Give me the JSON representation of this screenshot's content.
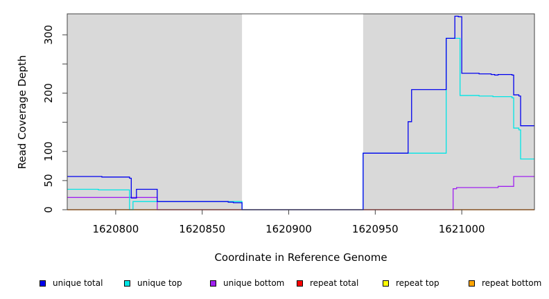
{
  "chart_data": {
    "type": "line",
    "xlabel": "Coordinate in Reference Genome",
    "ylabel": "Read Coverage Depth",
    "xlim": [
      1620772,
      1621042
    ],
    "ylim": [
      0,
      336
    ],
    "x_ticks": [
      1620800,
      1620850,
      1620900,
      1620950,
      1621000
    ],
    "x_tick_labels": [
      "1620800",
      "1620850",
      "1620900",
      "1620950",
      "1621000"
    ],
    "y_ticks": [
      0,
      50,
      100,
      150,
      200,
      250,
      300
    ],
    "y_tick_labels": [
      "0",
      "50",
      "100",
      "",
      "200",
      "",
      "300"
    ],
    "shaded_regions": [
      [
        1620772,
        1620873
      ],
      [
        1620943,
        1621042
      ]
    ],
    "background_color": "#d9d9d9",
    "series": [
      {
        "name": "unique total",
        "color": "#0000ee",
        "points": [
          [
            1620772,
            57
          ],
          [
            1620792,
            57
          ],
          [
            1620792,
            56
          ],
          [
            1620808,
            56
          ],
          [
            1620808,
            54
          ],
          [
            1620809,
            54
          ],
          [
            1620809,
            20
          ],
          [
            1620812,
            20
          ],
          [
            1620812,
            35
          ],
          [
            1620824,
            35
          ],
          [
            1620824,
            14
          ],
          [
            1620865,
            14
          ],
          [
            1620865,
            13
          ],
          [
            1620868,
            13
          ],
          [
            1620868,
            12
          ],
          [
            1620873,
            12
          ],
          [
            1620873,
            0
          ],
          [
            1620943,
            0
          ],
          [
            1620943,
            97
          ],
          [
            1620969,
            97
          ],
          [
            1620969,
            151
          ],
          [
            1620971,
            151
          ],
          [
            1620971,
            206
          ],
          [
            1620991,
            206
          ],
          [
            1620991,
            294
          ],
          [
            1620996,
            294
          ],
          [
            1620996,
            332
          ],
          [
            1620998,
            332
          ],
          [
            1620998,
            331
          ],
          [
            1621000,
            331
          ],
          [
            1621000,
            234
          ],
          [
            1621010,
            234
          ],
          [
            1621010,
            233
          ],
          [
            1621017,
            233
          ],
          [
            1621017,
            232
          ],
          [
            1621019,
            232
          ],
          [
            1621019,
            231
          ],
          [
            1621021,
            231
          ],
          [
            1621021,
            232
          ],
          [
            1621029,
            232
          ],
          [
            1621029,
            231
          ],
          [
            1621030,
            231
          ],
          [
            1621030,
            197
          ],
          [
            1621033,
            197
          ],
          [
            1621033,
            195
          ],
          [
            1621034,
            195
          ],
          [
            1621034,
            144
          ],
          [
            1621042,
            144
          ]
        ]
      },
      {
        "name": "unique top",
        "color": "#00e5e5",
        "points": [
          [
            1620772,
            35
          ],
          [
            1620790,
            35
          ],
          [
            1620790,
            34
          ],
          [
            1620808,
            34
          ],
          [
            1620808,
            0
          ],
          [
            1620810,
            0
          ],
          [
            1620810,
            14
          ],
          [
            1620873,
            14
          ],
          [
            1620873,
            0
          ],
          [
            1620943,
            0
          ],
          [
            1620943,
            97
          ],
          [
            1620991,
            97
          ],
          [
            1620991,
            294
          ],
          [
            1620999,
            294
          ],
          [
            1620999,
            196
          ],
          [
            1621010,
            196
          ],
          [
            1621010,
            195
          ],
          [
            1621018,
            195
          ],
          [
            1621018,
            194
          ],
          [
            1621029,
            194
          ],
          [
            1621029,
            192
          ],
          [
            1621030,
            192
          ],
          [
            1621030,
            140
          ],
          [
            1621033,
            140
          ],
          [
            1621033,
            137
          ],
          [
            1621034,
            137
          ],
          [
            1621034,
            87
          ],
          [
            1621042,
            87
          ]
        ]
      },
      {
        "name": "unique bottom",
        "color": "#a020f0",
        "points": [
          [
            1620772,
            21
          ],
          [
            1620824,
            21
          ],
          [
            1620824,
            0
          ],
          [
            1620995,
            0
          ],
          [
            1620995,
            36
          ],
          [
            1620997,
            36
          ],
          [
            1620997,
            38
          ],
          [
            1621021,
            38
          ],
          [
            1621021,
            40
          ],
          [
            1621030,
            40
          ],
          [
            1621030,
            57
          ],
          [
            1621042,
            57
          ]
        ]
      },
      {
        "name": "repeat total",
        "color": "#ff0000",
        "points": [
          [
            1620772,
            0
          ],
          [
            1621042,
            0
          ]
        ]
      },
      {
        "name": "repeat top",
        "color": "#ffff00",
        "points": [
          [
            1620772,
            0
          ],
          [
            1621042,
            0
          ]
        ]
      },
      {
        "name": "repeat bottom",
        "color": "#ffa500",
        "points": [
          [
            1620772,
            0
          ],
          [
            1621042,
            0
          ]
        ]
      }
    ],
    "legend": [
      "unique total",
      "unique top",
      "unique bottom",
      "repeat total",
      "repeat top",
      "repeat bottom"
    ],
    "legend_placement": "bottom"
  }
}
